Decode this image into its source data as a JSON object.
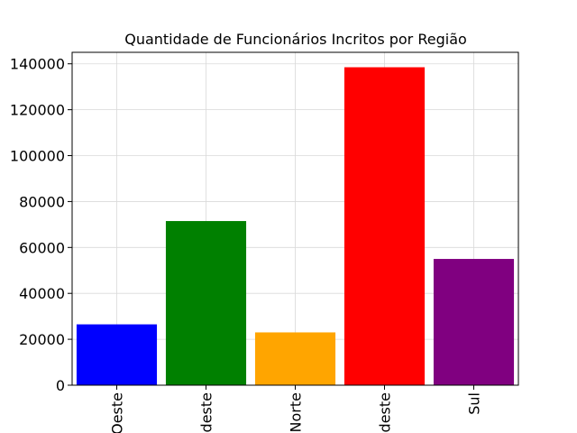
{
  "chart_data": {
    "type": "bar",
    "title": "Quantidade de Funcionários Incritos por Região",
    "categories": [
      "Centro-Oeste",
      "Nordeste",
      "Norte",
      "Sudeste",
      "Sul"
    ],
    "tick_labels_visible": [
      "Oeste",
      "deste",
      "Norte",
      "deste",
      "Sul"
    ],
    "values": [
      26500,
      71500,
      23000,
      138500,
      55000
    ],
    "colors": [
      "#0000ff",
      "#008000",
      "#ffa500",
      "#ff0000",
      "#800080"
    ],
    "xlabel": "",
    "ylabel": "",
    "ylim": [
      0,
      145000
    ],
    "yticks": [
      0,
      20000,
      40000,
      60000,
      80000,
      100000,
      120000,
      140000
    ],
    "ytick_labels": [
      "0",
      "20000",
      "40000",
      "60000",
      "80000",
      "100000",
      "120000",
      "140000"
    ],
    "grid": true,
    "xtick_rotation": "vertical"
  }
}
